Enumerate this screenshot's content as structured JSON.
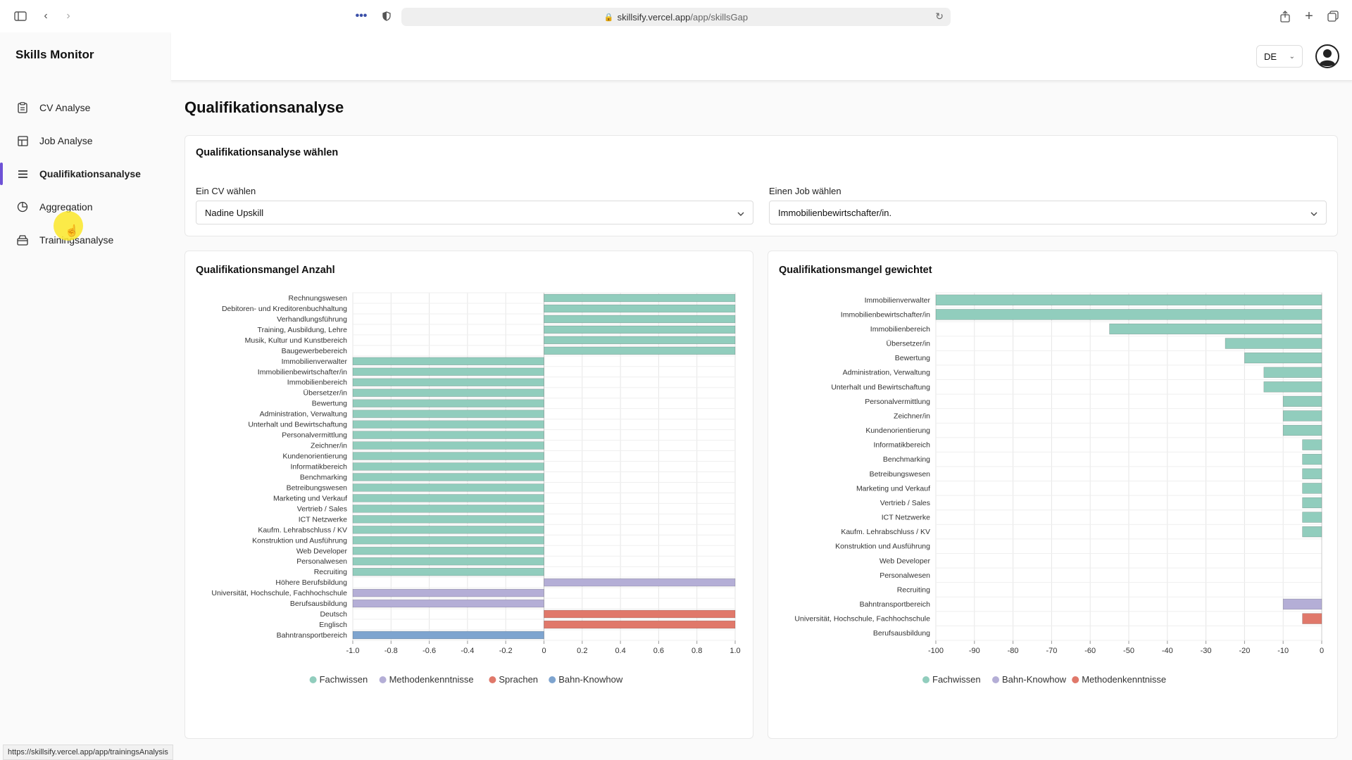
{
  "browser": {
    "url_host": "skillsify.vercel.app",
    "url_path": "/app/skillsGap",
    "status_url": "https://skillsify.vercel.app/app/trainingsAnalysis"
  },
  "app": {
    "title": "Skills Monitor"
  },
  "sidebar": {
    "items": [
      {
        "label": "CV Analyse",
        "icon": "clipboard-icon"
      },
      {
        "label": "Job Analyse",
        "icon": "layout-icon"
      },
      {
        "label": "Qualifikationsanalyse",
        "icon": "list-icon",
        "active": true
      },
      {
        "label": "Aggregation",
        "icon": "pie-chart-icon"
      },
      {
        "label": "Trainingsanalyse",
        "icon": "box-icon"
      }
    ]
  },
  "header": {
    "language": "DE"
  },
  "main": {
    "title": "Qualifikationsanalyse",
    "selector": {
      "title": "Qualifikationsanalyse wählen",
      "cv_label": "Ein CV wählen",
      "cv_value": "Nadine Upskill",
      "job_label": "Einen Job wählen",
      "job_value": "Immobilienbewirtschafter/in."
    }
  },
  "chart_data": [
    {
      "type": "bar",
      "orientation": "horizontal",
      "title": "Qualifikationsmangel Anzahl",
      "xlim": [
        -1.0,
        1.0
      ],
      "xticks": [
        "-1.0",
        "-0.8",
        "-0.6",
        "-0.4",
        "-0.2",
        "0",
        "0.2",
        "0.4",
        "0.6",
        "0.8",
        "1.0"
      ],
      "grid": true,
      "legend_position": "bottom",
      "legend": [
        {
          "name": "Fachwissen",
          "color": "#91cdbd"
        },
        {
          "name": "Methodenkenntnisse",
          "color": "#b4aed6"
        },
        {
          "name": "Sprachen",
          "color": "#e0786a"
        },
        {
          "name": "Bahn-Knowhow",
          "color": "#7ea4cf"
        }
      ],
      "bars": [
        {
          "label": "Rechnungswesen",
          "value": 1,
          "group": "Fachwissen"
        },
        {
          "label": "Debitoren- und Kreditorenbuchhaltung",
          "value": 1,
          "group": "Fachwissen"
        },
        {
          "label": "Verhandlungsführung",
          "value": 1,
          "group": "Fachwissen"
        },
        {
          "label": "Training, Ausbildung, Lehre",
          "value": 1,
          "group": "Fachwissen"
        },
        {
          "label": "Musik, Kultur und Kunstbereich",
          "value": 1,
          "group": "Fachwissen"
        },
        {
          "label": "Baugewerbebereich",
          "value": 1,
          "group": "Fachwissen"
        },
        {
          "label": "Immobilienverwalter",
          "value": -1,
          "group": "Fachwissen"
        },
        {
          "label": "Immobilienbewirtschafter/in",
          "value": -1,
          "group": "Fachwissen"
        },
        {
          "label": "Immobilienbereich",
          "value": -1,
          "group": "Fachwissen"
        },
        {
          "label": "Übersetzer/in",
          "value": -1,
          "group": "Fachwissen"
        },
        {
          "label": "Bewertung",
          "value": -1,
          "group": "Fachwissen"
        },
        {
          "label": "Administration, Verwaltung",
          "value": -1,
          "group": "Fachwissen"
        },
        {
          "label": "Unterhalt und Bewirtschaftung",
          "value": -1,
          "group": "Fachwissen"
        },
        {
          "label": "Personalvermittlung",
          "value": -1,
          "group": "Fachwissen"
        },
        {
          "label": "Zeichner/in",
          "value": -1,
          "group": "Fachwissen"
        },
        {
          "label": "Kundenorientierung",
          "value": -1,
          "group": "Fachwissen"
        },
        {
          "label": "Informatikbereich",
          "value": -1,
          "group": "Fachwissen"
        },
        {
          "label": "Benchmarking",
          "value": -1,
          "group": "Fachwissen"
        },
        {
          "label": "Betreibungswesen",
          "value": -1,
          "group": "Fachwissen"
        },
        {
          "label": "Marketing und Verkauf",
          "value": -1,
          "group": "Fachwissen"
        },
        {
          "label": "Vertrieb / Sales",
          "value": -1,
          "group": "Fachwissen"
        },
        {
          "label": "ICT Netzwerke",
          "value": -1,
          "group": "Fachwissen"
        },
        {
          "label": "Kaufm. Lehrabschluss / KV",
          "value": -1,
          "group": "Fachwissen"
        },
        {
          "label": "Konstruktion und Ausführung",
          "value": -1,
          "group": "Fachwissen"
        },
        {
          "label": "Web Developer",
          "value": -1,
          "group": "Fachwissen"
        },
        {
          "label": "Personalwesen",
          "value": -1,
          "group": "Fachwissen"
        },
        {
          "label": "Recruiting",
          "value": -1,
          "group": "Fachwissen"
        },
        {
          "label": "Höhere Berufsbildung",
          "value": 1,
          "group": "Methodenkenntnisse"
        },
        {
          "label": "Universität, Hochschule, Fachhochschule",
          "value": -1,
          "group": "Methodenkenntnisse"
        },
        {
          "label": "Berufsausbildung",
          "value": -1,
          "group": "Methodenkenntnisse"
        },
        {
          "label": "Deutsch",
          "value": 1,
          "group": "Sprachen"
        },
        {
          "label": "Englisch",
          "value": 1,
          "group": "Sprachen"
        },
        {
          "label": "Bahntransportbereich",
          "value": -1,
          "group": "Bahn-Knowhow"
        }
      ]
    },
    {
      "type": "bar",
      "orientation": "horizontal",
      "title": "Qualifikationsmangel gewichtet",
      "xlim": [
        -100,
        0
      ],
      "xticks": [
        "-100",
        "-90",
        "-80",
        "-70",
        "-60",
        "-50",
        "-40",
        "-30",
        "-20",
        "-10",
        "0"
      ],
      "grid": true,
      "legend_position": "bottom",
      "legend": [
        {
          "name": "Fachwissen",
          "color": "#91cdbd"
        },
        {
          "name": "Bahn-Knowhow",
          "color": "#b4aed6"
        },
        {
          "name": "Methodenkenntnisse",
          "color": "#e0786a"
        }
      ],
      "bars": [
        {
          "label": "Immobilienverwalter",
          "value": -100,
          "group": "Fachwissen"
        },
        {
          "label": "Immobilienbewirtschafter/in",
          "value": -100,
          "group": "Fachwissen"
        },
        {
          "label": "Immobilienbereich",
          "value": -55,
          "group": "Fachwissen"
        },
        {
          "label": "Übersetzer/in",
          "value": -25,
          "group": "Fachwissen"
        },
        {
          "label": "Bewertung",
          "value": -20,
          "group": "Fachwissen"
        },
        {
          "label": "Administration, Verwaltung",
          "value": -15,
          "group": "Fachwissen"
        },
        {
          "label": "Unterhalt und Bewirtschaftung",
          "value": -15,
          "group": "Fachwissen"
        },
        {
          "label": "Personalvermittlung",
          "value": -10,
          "group": "Fachwissen"
        },
        {
          "label": "Zeichner/in",
          "value": -10,
          "group": "Fachwissen"
        },
        {
          "label": "Kundenorientierung",
          "value": -10,
          "group": "Fachwissen"
        },
        {
          "label": "Informatikbereich",
          "value": -5,
          "group": "Fachwissen"
        },
        {
          "label": "Benchmarking",
          "value": -5,
          "group": "Fachwissen"
        },
        {
          "label": "Betreibungswesen",
          "value": -5,
          "group": "Fachwissen"
        },
        {
          "label": "Marketing und Verkauf",
          "value": -5,
          "group": "Fachwissen"
        },
        {
          "label": "Vertrieb / Sales",
          "value": -5,
          "group": "Fachwissen"
        },
        {
          "label": "ICT Netzwerke",
          "value": -5,
          "group": "Fachwissen"
        },
        {
          "label": "Kaufm. Lehrabschluss / KV",
          "value": -5,
          "group": "Fachwissen"
        },
        {
          "label": "Konstruktion und Ausführung",
          "value": 0,
          "group": "Fachwissen"
        },
        {
          "label": "Web Developer",
          "value": 0,
          "group": "Fachwissen"
        },
        {
          "label": "Personalwesen",
          "value": 0,
          "group": "Fachwissen"
        },
        {
          "label": "Recruiting",
          "value": 0,
          "group": "Fachwissen"
        },
        {
          "label": "Bahntransportbereich",
          "value": -10,
          "group": "Bahn-Knowhow"
        },
        {
          "label": "Universität, Hochschule, Fachhochschule",
          "value": -5,
          "group": "Methodenkenntnisse"
        },
        {
          "label": "Berufsausbildung",
          "value": 0,
          "group": "Methodenkenntnisse"
        }
      ]
    }
  ]
}
